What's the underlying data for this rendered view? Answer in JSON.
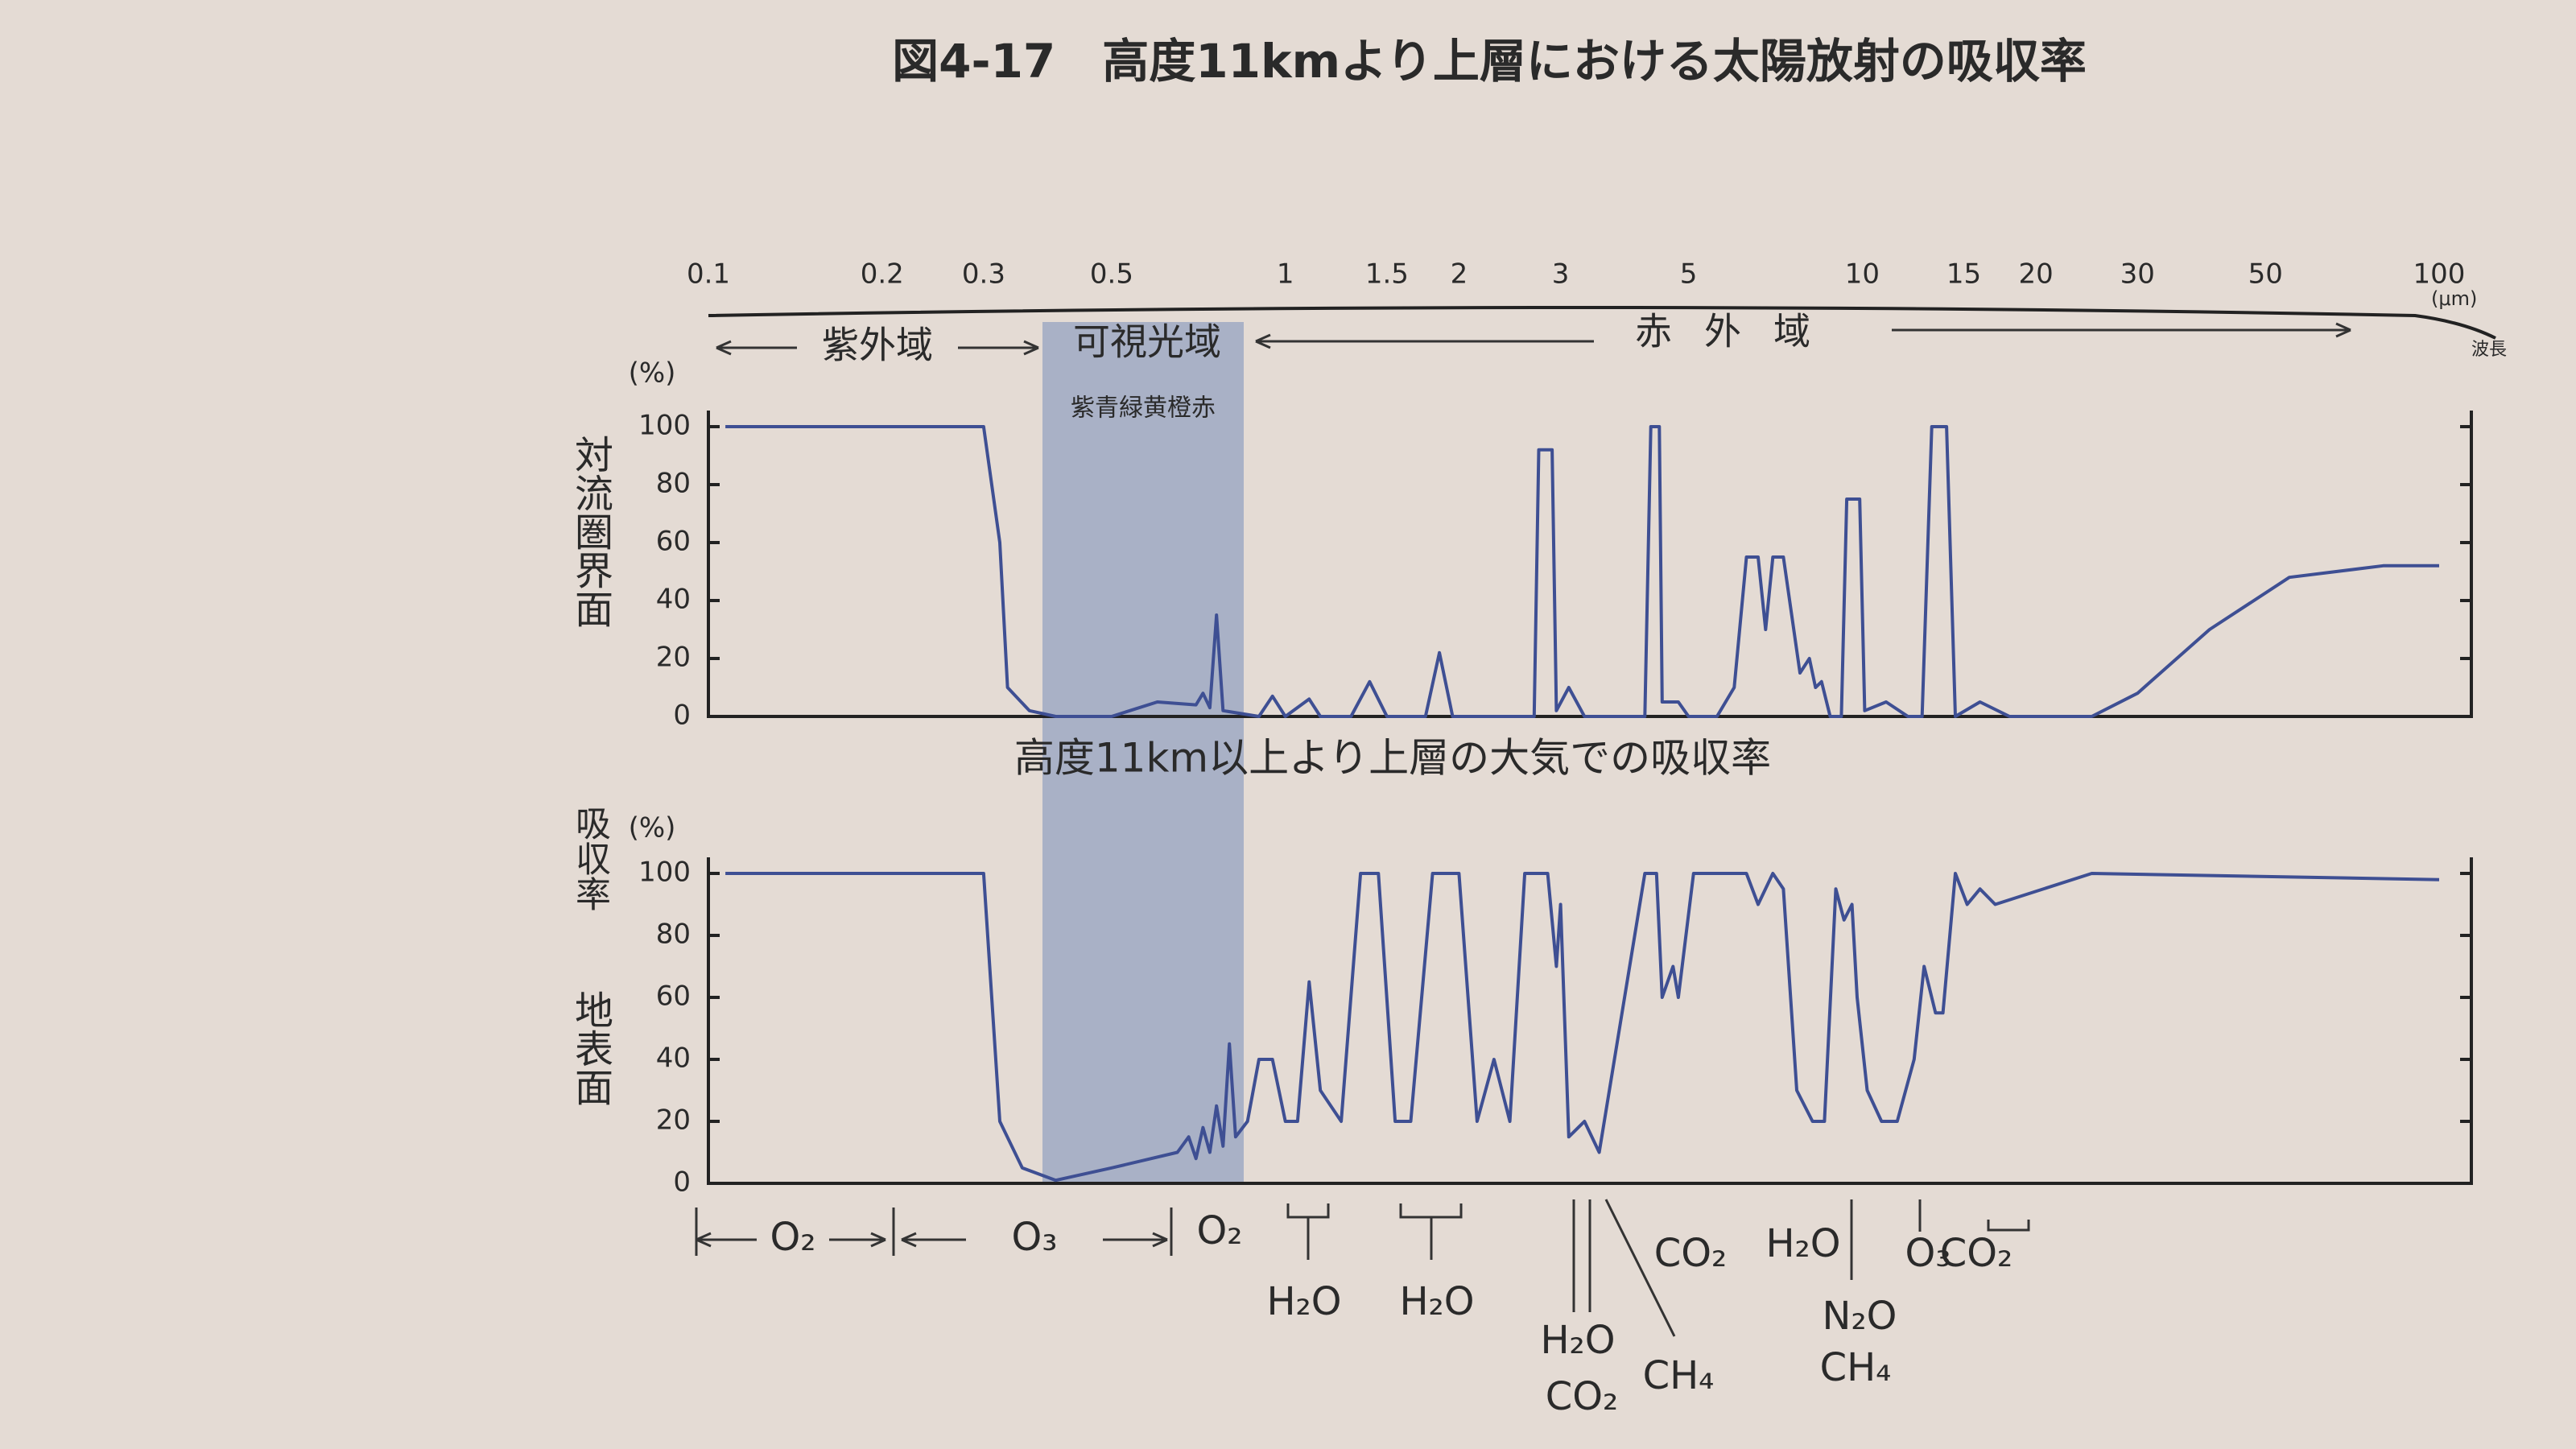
{
  "title": "図4-17　高度11kmより上層における太陽放射の吸収率",
  "ylabel": "吸収率",
  "regions": [
    "紫外域",
    "可視光域",
    "赤外域"
  ],
  "visible_colors": "紫青緑黄橙赤",
  "x_unit": "(μm)",
  "x_label": "波長",
  "absorbers": [
    "O₂",
    "O₃",
    "O₂",
    "H₂O",
    "H₂O",
    "H₂O",
    "CO₂",
    "CH₄",
    "CO₂",
    "H₂O",
    "N₂O",
    "CH₄",
    "O₃",
    "CO₂"
  ],
  "chart_data": [
    {
      "type": "line",
      "ylabel": "対流圏界面",
      "yunit": "(%)",
      "color": "#3e4f93",
      "log_x": true,
      "xlim": [
        0.1,
        100
      ],
      "ylim": [
        0,
        100
      ],
      "yticks": [
        0,
        20,
        40,
        60,
        80,
        100
      ],
      "xticks": [
        0.1,
        0.2,
        0.3,
        0.5,
        1,
        1.5,
        2,
        3,
        5,
        10,
        15,
        20,
        30,
        50,
        100
      ],
      "x": [
        0.107,
        0.3,
        0.32,
        0.33,
        0.36,
        0.4,
        0.5,
        0.6,
        0.7,
        0.72,
        0.74,
        0.76,
        0.78,
        0.9,
        0.95,
        1.0,
        1.1,
        1.15,
        1.3,
        1.4,
        1.5,
        1.75,
        1.85,
        1.95,
        2.7,
        2.75,
        2.9,
        2.95,
        3.1,
        3.3,
        4.2,
        4.3,
        4.45,
        4.5,
        4.8,
        5.0,
        5.6,
        6.0,
        6.3,
        6.6,
        6.8,
        7.0,
        7.3,
        7.8,
        8.1,
        8.3,
        8.5,
        8.8,
        9.2,
        9.4,
        9.9,
        10.1,
        11,
        12,
        12.7,
        13.2,
        14.0,
        14.5,
        16,
        18,
        25,
        30,
        40,
        55,
        80,
        100
      ],
      "values": [
        100,
        100,
        60,
        10,
        2,
        0,
        0,
        5,
        4,
        8,
        3,
        35,
        2,
        0,
        7,
        0,
        6,
        0,
        0,
        12,
        0,
        0,
        22,
        0,
        0,
        92,
        92,
        2,
        10,
        0,
        0,
        100,
        100,
        5,
        5,
        0,
        0,
        10,
        55,
        55,
        30,
        55,
        55,
        15,
        20,
        10,
        12,
        0,
        0,
        75,
        75,
        2,
        5,
        0,
        0,
        100,
        100,
        0,
        5,
        0,
        0,
        8,
        30,
        48,
        52,
        52
      ]
    },
    {
      "type": "line",
      "title": "高度11km以上より上層の大気での吸収率",
      "ylabel": "地表面",
      "yunit": "(%)",
      "color": "#3e4f93",
      "log_x": true,
      "xlim": [
        0.1,
        100
      ],
      "ylim": [
        0,
        100
      ],
      "yticks": [
        0,
        20,
        40,
        60,
        80,
        100
      ],
      "x": [
        0.107,
        0.3,
        0.32,
        0.35,
        0.4,
        0.5,
        0.65,
        0.68,
        0.7,
        0.72,
        0.74,
        0.76,
        0.78,
        0.8,
        0.82,
        0.86,
        0.9,
        0.95,
        1.0,
        1.05,
        1.1,
        1.15,
        1.25,
        1.35,
        1.45,
        1.55,
        1.65,
        1.8,
        2.0,
        2.15,
        2.3,
        2.45,
        2.6,
        2.85,
        2.95,
        3.0,
        3.1,
        3.3,
        3.5,
        4.2,
        4.4,
        4.5,
        4.7,
        4.8,
        5.1,
        6.3,
        6.6,
        7.0,
        7.3,
        7.7,
        8.2,
        8.6,
        9.0,
        9.3,
        9.6,
        9.8,
        10.2,
        10.8,
        11.5,
        12.3,
        12.8,
        13.4,
        13.8,
        14.5,
        15.2,
        16,
        17,
        25,
        100
      ],
      "values": [
        100,
        100,
        20,
        5,
        1,
        5,
        10,
        15,
        8,
        18,
        10,
        25,
        12,
        45,
        15,
        20,
        40,
        40,
        20,
        20,
        65,
        30,
        20,
        100,
        100,
        20,
        20,
        100,
        100,
        20,
        40,
        20,
        100,
        100,
        70,
        90,
        15,
        20,
        10,
        100,
        100,
        60,
        70,
        60,
        100,
        100,
        90,
        100,
        95,
        30,
        20,
        20,
        95,
        85,
        90,
        60,
        30,
        20,
        20,
        40,
        70,
        55,
        55,
        100,
        90,
        95,
        90,
        100,
        98
      ]
    }
  ]
}
